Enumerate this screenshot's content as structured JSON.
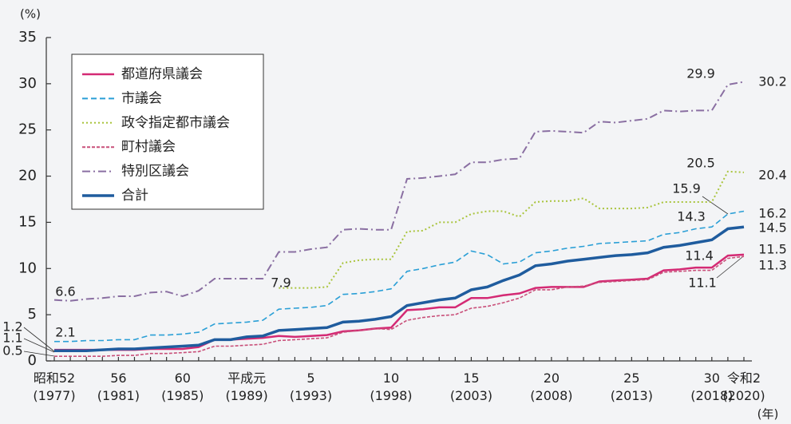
{
  "chart_data": {
    "type": "line",
    "y_label": "(%)",
    "x_label": "(年)",
    "categories": [
      "昭和52\n(1977)",
      null,
      null,
      null,
      "56\n(1981)",
      null,
      null,
      null,
      "60\n(1985)",
      null,
      null,
      null,
      "平成元\n(1989)",
      null,
      null,
      null,
      "5\n(1993)",
      null,
      null,
      null,
      null,
      "10\n(1998)",
      null,
      null,
      null,
      null,
      "15\n(2003)",
      null,
      null,
      null,
      null,
      "20\n(2008)",
      null,
      null,
      null,
      null,
      "25\n(2013)",
      null,
      null,
      null,
      null,
      "30\n(2018)",
      null,
      "令和2\n(2020)"
    ],
    "ylim": [
      0,
      35
    ],
    "yticks": [
      0,
      5,
      10,
      15,
      20,
      25,
      30,
      35
    ],
    "grid": false,
    "legend": "upper left",
    "series": [
      {
        "name": "都道府県議会",
        "color": "#d42a74",
        "style": "solid",
        "width": 2.5,
        "values": [
          1.2,
          1.2,
          1.2,
          1.2,
          1.2,
          1.2,
          1.3,
          1.3,
          1.3,
          1.5,
          2.3,
          2.3,
          2.4,
          2.5,
          2.7,
          2.6,
          2.7,
          2.8,
          3.2,
          3.3,
          3.5,
          3.6,
          5.5,
          5.6,
          5.8,
          5.8,
          6.8,
          6.8,
          7.1,
          7.3,
          7.9,
          8.0,
          8.0,
          8.0,
          8.6,
          8.7,
          8.8,
          8.9,
          9.8,
          9.9,
          10.1,
          10.1,
          11.4,
          11.5
        ]
      },
      {
        "name": "市議会",
        "color": "#2a9fd6",
        "style": "dashed",
        "width": 1.6,
        "values": [
          2.1,
          2.1,
          2.2,
          2.2,
          2.3,
          2.3,
          2.8,
          2.8,
          2.9,
          3.1,
          4.0,
          4.1,
          4.2,
          4.4,
          5.6,
          5.7,
          5.8,
          6.0,
          7.2,
          7.3,
          7.5,
          7.8,
          9.7,
          10.0,
          10.4,
          10.7,
          11.9,
          11.5,
          10.5,
          10.7,
          11.7,
          11.9,
          12.2,
          12.4,
          12.7,
          12.8,
          12.9,
          13.0,
          13.7,
          13.9,
          14.3,
          14.5,
          15.9,
          16.2
        ]
      },
      {
        "name": "政令指定都市議会",
        "color": "#a9c43c",
        "style": "dotted",
        "width": 2,
        "values": [
          null,
          null,
          null,
          null,
          null,
          null,
          null,
          null,
          null,
          null,
          null,
          null,
          null,
          null,
          7.9,
          7.9,
          7.9,
          8.0,
          10.6,
          10.9,
          11.0,
          11.0,
          14.0,
          14.1,
          15.0,
          15.0,
          15.9,
          16.2,
          16.2,
          15.6,
          17.2,
          17.3,
          17.3,
          17.6,
          16.5,
          16.5,
          16.5,
          16.6,
          17.2,
          17.2,
          17.2,
          17.2,
          20.5,
          20.4
        ]
      },
      {
        "name": "町村議会",
        "color": "#c9507a",
        "style": "fine",
        "width": 1.6,
        "values": [
          0.5,
          0.5,
          0.5,
          0.5,
          0.6,
          0.6,
          0.8,
          0.8,
          0.9,
          1.0,
          1.6,
          1.6,
          1.7,
          1.8,
          2.2,
          2.3,
          2.4,
          2.5,
          3.1,
          3.3,
          3.5,
          3.4,
          4.4,
          4.7,
          4.9,
          5.0,
          5.7,
          5.9,
          6.3,
          6.8,
          7.7,
          7.7,
          8.0,
          8.1,
          8.5,
          8.6,
          8.7,
          8.8,
          9.6,
          9.7,
          9.8,
          9.8,
          11.1,
          11.3
        ]
      },
      {
        "name": "特別区議会",
        "color": "#8a6fa2",
        "style": "dashdot",
        "width": 2,
        "values": [
          6.6,
          6.5,
          6.7,
          6.8,
          7.0,
          7.0,
          7.4,
          7.5,
          7.0,
          7.6,
          8.9,
          8.9,
          8.9,
          8.9,
          11.8,
          11.8,
          12.1,
          12.3,
          14.2,
          14.3,
          14.2,
          14.2,
          19.7,
          19.8,
          20.0,
          20.2,
          21.5,
          21.5,
          21.8,
          21.9,
          24.8,
          24.9,
          24.8,
          24.7,
          25.9,
          25.8,
          26.0,
          26.2,
          27.1,
          27.0,
          27.1,
          27.1,
          29.9,
          30.2
        ]
      },
      {
        "name": "合計",
        "color": "#1f5c9e",
        "style": "solid",
        "width": 3.5,
        "values": [
          1.1,
          1.1,
          1.1,
          1.2,
          1.3,
          1.3,
          1.4,
          1.5,
          1.6,
          1.7,
          2.3,
          2.3,
          2.6,
          2.7,
          3.3,
          3.4,
          3.5,
          3.6,
          4.2,
          4.3,
          4.5,
          4.8,
          6.0,
          6.3,
          6.6,
          6.8,
          7.7,
          8.0,
          8.7,
          9.3,
          10.3,
          10.5,
          10.8,
          11.0,
          11.2,
          11.4,
          11.5,
          11.7,
          12.3,
          12.5,
          12.8,
          13.1,
          14.3,
          14.5
        ]
      }
    ],
    "annotations": [
      "6.6",
      "2.1",
      "1.2",
      "1.1",
      "0.5",
      "7.9",
      "29.9",
      "30.2",
      "20.5",
      "20.4",
      "15.9",
      "16.2",
      "14.3",
      "14.5",
      "11.4",
      "11.5",
      "11.1",
      "11.3"
    ]
  }
}
